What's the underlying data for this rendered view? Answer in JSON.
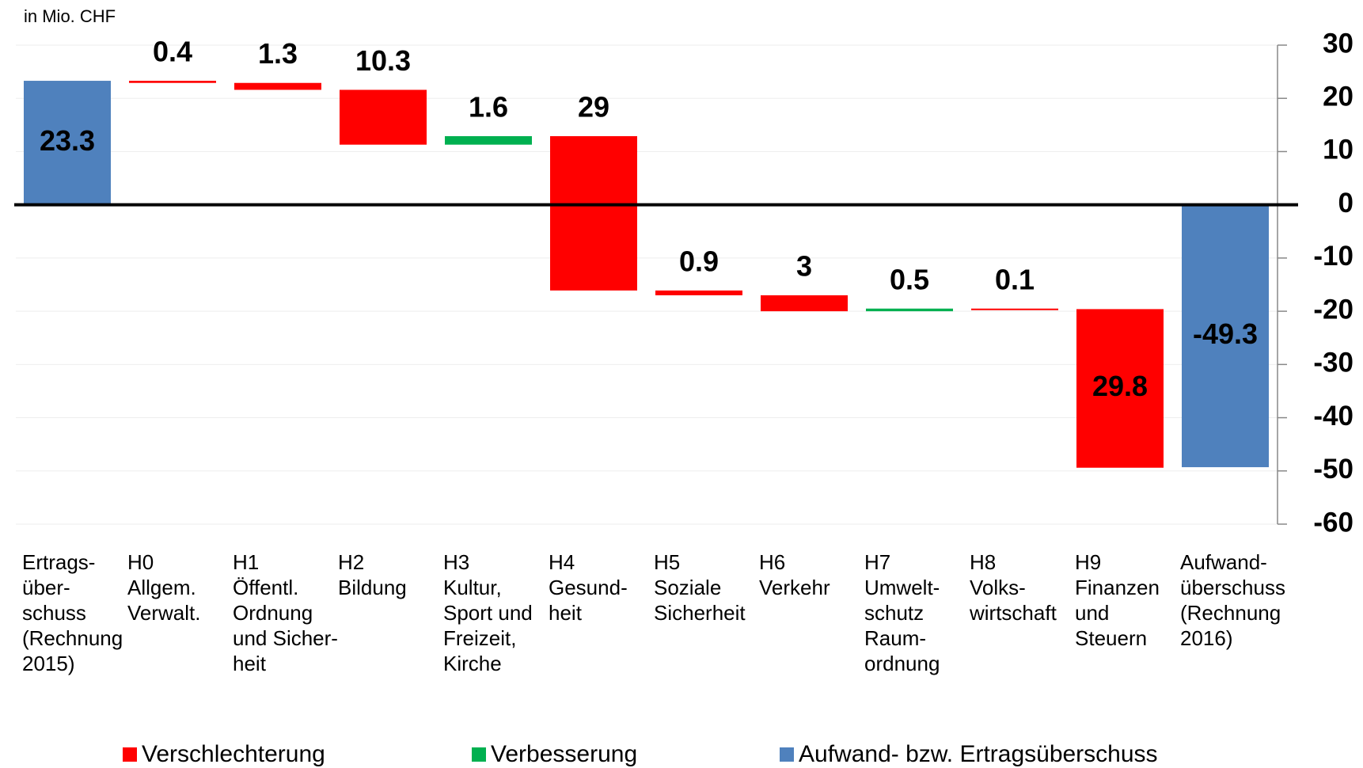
{
  "chart_data": {
    "type": "waterfall",
    "y_label": "in Mio. CHF",
    "categories": [
      "Ertrags-\nüber-\nschuss\n(Rechnung\n2015)",
      " H0\nAllgem.\nVerwalt.",
      " H1\nÖffentl.\nOrdnung\nund Sicher-\nheit",
      " H2\nBildung",
      " H3\nKultur,\nSport und\nFreizeit,\nKirche",
      "H4\nGesund-\nheit",
      "  H5\nSoziale\nSicherheit",
      "  H6\nVerkehr",
      "  H7\nUmwelt-\nschutz\nRaum-\nordnung",
      " H8\nVolks-\nwirtschaft",
      "  H9\nFinanzen\nund\nSteuern",
      "Aufwand-\nüberschuss\n(Rechnung\n 2016)"
    ],
    "values": [
      23.3,
      0.4,
      1.3,
      10.3,
      1.6,
      29,
      0.9,
      3,
      0.5,
      0.1,
      29.8,
      -49.3
    ],
    "bar_series": [
      2,
      0,
      0,
      0,
      1,
      0,
      0,
      0,
      1,
      0,
      0,
      2
    ],
    "series": [
      {
        "name": "Verschlechterung",
        "color": "#ff0000"
      },
      {
        "name": "Verbesserung",
        "color": "#00b050"
      },
      {
        "name": "Aufwand- bzw. Ertragsüberschuss",
        "color": "#4f81bd"
      }
    ],
    "ylim": [
      -60,
      30
    ],
    "yticks": [
      -60,
      -50,
      -40,
      -30,
      -20,
      -10,
      0,
      10,
      20,
      30
    ],
    "grid": true,
    "y_axis_side": "right",
    "legend": "bottom"
  }
}
